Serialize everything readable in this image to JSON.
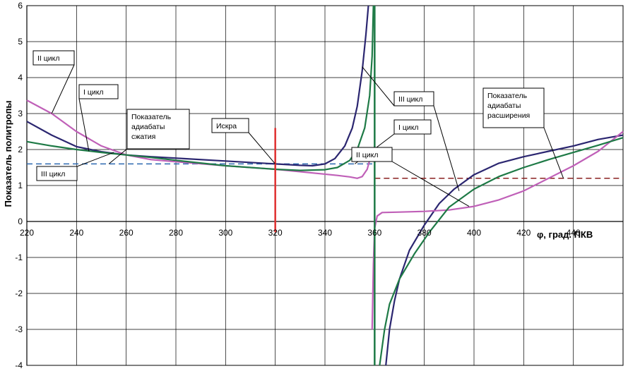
{
  "chart_data": {
    "type": "line",
    "title": "",
    "xlabel": "φ,  град.  ПКВ",
    "ylabel": "Показатель политропы",
    "xlim": [
      220,
      460
    ],
    "ylim": [
      -4,
      6
    ],
    "x_ticks": [
      220,
      240,
      260,
      280,
      300,
      320,
      340,
      360,
      380,
      400,
      420,
      440
    ],
    "y_ticks": [
      -4,
      -3,
      -2,
      -1,
      0,
      1,
      2,
      3,
      4,
      5,
      6
    ],
    "grid": true,
    "series": [
      {
        "name": "I цикл",
        "color": "#2b2670",
        "values": [
          [
            220,
            2.78
          ],
          [
            230,
            2.4
          ],
          [
            240,
            2.08
          ],
          [
            250,
            1.94
          ],
          [
            260,
            1.85
          ],
          [
            270,
            1.8
          ],
          [
            280,
            1.76
          ],
          [
            300,
            1.68
          ],
          [
            320,
            1.6
          ],
          [
            330,
            1.56
          ],
          [
            335,
            1.55
          ],
          [
            340,
            1.6
          ],
          [
            344,
            1.75
          ],
          [
            348,
            2.1
          ],
          [
            351,
            2.6
          ],
          [
            353,
            3.2
          ],
          [
            355,
            4.2
          ],
          [
            356.5,
            5.2
          ],
          [
            357.5,
            6.0
          ],
          null,
          [
            364.5,
            -4.0
          ],
          [
            366,
            -3.0
          ],
          [
            368,
            -2.2
          ],
          [
            370,
            -1.6
          ],
          [
            374,
            -0.8
          ],
          [
            380,
            -0.1
          ],
          [
            386,
            0.5
          ],
          [
            392,
            0.9
          ],
          [
            400,
            1.3
          ],
          [
            410,
            1.62
          ],
          [
            420,
            1.8
          ],
          [
            430,
            1.95
          ],
          [
            440,
            2.1
          ],
          [
            450,
            2.28
          ],
          [
            460,
            2.4
          ]
        ]
      },
      {
        "name": "II цикл",
        "color": "#c060b8",
        "values": [
          [
            220,
            3.37
          ],
          [
            230,
            3.0
          ],
          [
            240,
            2.5
          ],
          [
            250,
            2.1
          ],
          [
            260,
            1.85
          ],
          [
            270,
            1.72
          ],
          [
            280,
            1.66
          ],
          [
            300,
            1.55
          ],
          [
            320,
            1.45
          ],
          [
            335,
            1.35
          ],
          [
            345,
            1.28
          ],
          [
            350,
            1.24
          ],
          [
            353,
            1.2
          ],
          [
            355,
            1.25
          ],
          [
            357,
            1.45
          ],
          [
            358,
            1.7
          ],
          null,
          [
            359,
            -3.0
          ],
          [
            359.5,
            -1.2
          ],
          [
            360,
            -0.2
          ],
          [
            361,
            0.15
          ],
          [
            363,
            0.25
          ],
          [
            370,
            0.26
          ],
          [
            380,
            0.28
          ],
          [
            390,
            0.32
          ],
          [
            400,
            0.42
          ],
          [
            410,
            0.6
          ],
          [
            420,
            0.85
          ],
          [
            430,
            1.2
          ],
          [
            440,
            1.55
          ],
          [
            450,
            1.95
          ],
          [
            460,
            2.5
          ]
        ]
      },
      {
        "name": "III цикл",
        "color": "#1e7a46",
        "values": [
          [
            220,
            2.22
          ],
          [
            230,
            2.1
          ],
          [
            240,
            2.0
          ],
          [
            250,
            1.92
          ],
          [
            260,
            1.85
          ],
          [
            270,
            1.78
          ],
          [
            280,
            1.7
          ],
          [
            300,
            1.55
          ],
          [
            320,
            1.45
          ],
          [
            330,
            1.42
          ],
          [
            340,
            1.44
          ],
          [
            345,
            1.5
          ],
          [
            350,
            1.7
          ],
          [
            353,
            2.0
          ],
          [
            356,
            2.6
          ],
          [
            358,
            3.5
          ],
          [
            359,
            4.6
          ],
          [
            359.5,
            6.0
          ],
          null,
          [
            362,
            -4.0
          ],
          [
            364,
            -3.0
          ],
          [
            366,
            -2.3
          ],
          [
            370,
            -1.6
          ],
          [
            376,
            -0.9
          ],
          [
            382,
            -0.3
          ],
          [
            390,
            0.4
          ],
          [
            400,
            0.9
          ],
          [
            410,
            1.25
          ],
          [
            420,
            1.5
          ],
          [
            430,
            1.72
          ],
          [
            440,
            1.92
          ],
          [
            450,
            2.12
          ],
          [
            460,
            2.33
          ]
        ]
      }
    ],
    "reference_lines": [
      {
        "label": "Показатель адиабаты сжатия",
        "color": "#2b68b0",
        "y": 1.6,
        "x_range": [
          220,
          360
        ]
      },
      {
        "label": "Показатель адиабаты расширения",
        "color": "#8a2020",
        "y": 1.2,
        "x_range": [
          360,
          460
        ]
      }
    ],
    "markers": [
      {
        "label": "Искра",
        "x": 320,
        "y_range": [
          -0.3,
          2.6
        ],
        "color": "#e03030"
      },
      {
        "x": 360,
        "y_range": [
          -4,
          6
        ],
        "color": "#1e7a46"
      }
    ],
    "annotations": [
      {
        "id": "ann-ii-left",
        "text": "II цикл",
        "target": [
          230,
          3.0
        ]
      },
      {
        "id": "ann-i-left",
        "text": "I цикл",
        "target": [
          245,
          1.95
        ]
      },
      {
        "id": "ann-adiab-compr",
        "text": "Показатель адиабаты сжатия",
        "target": [
          253,
          1.6
        ]
      },
      {
        "id": "ann-iskra",
        "text": "Искра",
        "target": [
          320,
          1.6
        ]
      },
      {
        "id": "ann-iii-left",
        "text": "III цикл",
        "target": [
          255,
          1.92
        ]
      },
      {
        "id": "ann-iii-right",
        "text": "III цикл",
        "target": [
          355,
          4.3
        ]
      },
      {
        "id": "ann-i-right",
        "text": "I цикл",
        "target": [
          352,
          1.6
        ]
      },
      {
        "id": "ann-ii-right",
        "text": "II цикл",
        "target": [
          398,
          0.42
        ]
      },
      {
        "id": "ann-iii-right-2",
        "text": "III цикл",
        "target": [
          394,
          0.85
        ]
      },
      {
        "id": "ann-adiab-exp",
        "text": "Показатель адиабаты расширения",
        "target": [
          436,
          1.2
        ]
      }
    ]
  }
}
